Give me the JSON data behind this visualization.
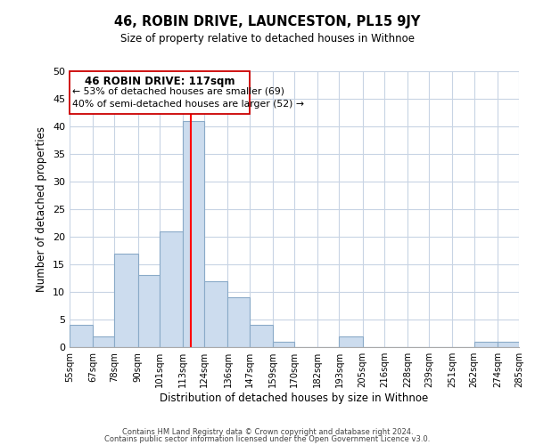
{
  "title": "46, ROBIN DRIVE, LAUNCESTON, PL15 9JY",
  "subtitle": "Size of property relative to detached houses in Withnoe",
  "xlabel": "Distribution of detached houses by size in Withnoe",
  "ylabel": "Number of detached properties",
  "bar_color": "#ccdcee",
  "bar_edge_color": "#8aaac8",
  "vline_x": 117,
  "vline_color": "red",
  "bins": [
    55,
    67,
    78,
    90,
    101,
    113,
    124,
    136,
    147,
    159,
    170,
    182,
    193,
    205,
    216,
    228,
    239,
    251,
    262,
    274,
    285
  ],
  "counts": [
    4,
    2,
    17,
    13,
    21,
    41,
    12,
    9,
    4,
    1,
    0,
    0,
    2,
    0,
    0,
    0,
    0,
    0,
    1,
    1
  ],
  "tick_labels": [
    "55sqm",
    "67sqm",
    "78sqm",
    "90sqm",
    "101sqm",
    "113sqm",
    "124sqm",
    "136sqm",
    "147sqm",
    "159sqm",
    "170sqm",
    "182sqm",
    "193sqm",
    "205sqm",
    "216sqm",
    "228sqm",
    "239sqm",
    "251sqm",
    "262sqm",
    "274sqm",
    "285sqm"
  ],
  "ylim": [
    0,
    50
  ],
  "yticks": [
    0,
    5,
    10,
    15,
    20,
    25,
    30,
    35,
    40,
    45,
    50
  ],
  "annotation_title": "46 ROBIN DRIVE: 117sqm",
  "annotation_line1": "← 53% of detached houses are smaller (69)",
  "annotation_line2": "40% of semi-detached houses are larger (52) →",
  "footer1": "Contains HM Land Registry data © Crown copyright and database right 2024.",
  "footer2": "Contains public sector information licensed under the Open Government Licence v3.0.",
  "background_color": "#ffffff",
  "grid_color": "#c8d4e4"
}
